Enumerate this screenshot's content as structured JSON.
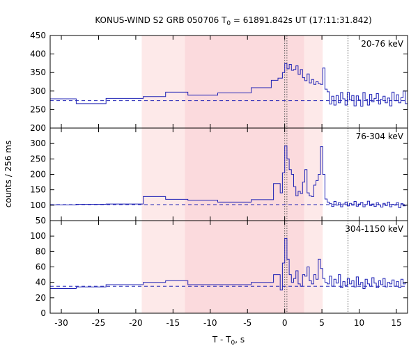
{
  "chart_data": {
    "type": "line",
    "title_main": "KONUS-WIND S2 GRB 050706 T",
    "title_sub": "0",
    "title_rest": " = 61891.842s UT (17:11:31.842)",
    "xlabel_main": "T - T",
    "xlabel_sub": "0",
    "xlabel_rest": ", s",
    "ylabel": "counts / 256 ms",
    "xlim": [
      -31.5,
      16.5
    ],
    "xticks": [
      -30,
      -25,
      -20,
      -15,
      -10,
      -5,
      0,
      5,
      10,
      15
    ],
    "shaded_regions": [
      {
        "x0": -19.2,
        "x1": 5.1,
        "color": "#fde9e9"
      },
      {
        "x0": -13.4,
        "x1": 2.6,
        "color": "#fbdadd"
      }
    ],
    "vlines": [
      0.0,
      0.3,
      8.5
    ],
    "line_color": "#1f22b5",
    "panels": [
      {
        "label": "20-76 keV",
        "ylim": [
          200,
          450
        ],
        "yticks": [
          200,
          250,
          300,
          350,
          400,
          450
        ],
        "background": 274,
        "x": [
          -31.5,
          -28.0,
          -24.0,
          -19.0,
          -16.0,
          -13.0,
          -9.0,
          -4.5,
          -1.8,
          -0.9,
          -0.3,
          0.0,
          0.3,
          0.6,
          0.9,
          1.2,
          1.5,
          1.8,
          2.1,
          2.4,
          2.7,
          3.0,
          3.3,
          3.6,
          3.9,
          4.2,
          4.5,
          4.8,
          5.1,
          5.4,
          5.7,
          6.0,
          6.3,
          6.6,
          6.9,
          7.2,
          7.5,
          7.8,
          8.1,
          8.4,
          8.7,
          9.0,
          9.3,
          9.6,
          9.9,
          10.2,
          10.5,
          10.8,
          11.1,
          11.4,
          11.7,
          12.0,
          12.3,
          12.6,
          12.9,
          13.2,
          13.5,
          13.8,
          14.1,
          14.4,
          14.7,
          15.0,
          15.3,
          15.6,
          15.9,
          16.2
        ],
        "y": [
          279,
          266,
          280,
          285,
          297,
          289,
          295,
          309,
          329,
          335,
          350,
          374,
          360,
          372,
          356,
          358,
          368,
          345,
          358,
          336,
          328,
          346,
          322,
          331,
          318,
          325,
          320,
          318,
          362,
          305,
          298,
          265,
          286,
          262,
          288,
          268,
          296,
          279,
          262,
          296,
          276,
          288,
          260,
          287,
          276,
          259,
          296,
          278,
          262,
          291,
          271,
          280,
          293,
          265,
          278,
          286,
          268,
          281,
          260,
          297,
          274,
          290,
          268,
          282,
          300,
          266
        ]
      },
      {
        "label": "76-304 keV",
        "ylim": [
          50,
          350
        ],
        "yticks": [
          50,
          100,
          150,
          200,
          250,
          300
        ],
        "background": 102,
        "x": [
          -31.5,
          -28.0,
          -24.0,
          -19.0,
          -16.0,
          -13.0,
          -9.0,
          -4.5,
          -1.5,
          -0.6,
          -0.3,
          0.0,
          0.3,
          0.6,
          0.9,
          1.2,
          1.5,
          1.8,
          2.1,
          2.4,
          2.7,
          3.0,
          3.3,
          3.6,
          3.9,
          4.2,
          4.5,
          4.8,
          5.1,
          5.4,
          5.7,
          6.0,
          6.3,
          6.6,
          6.9,
          7.2,
          7.5,
          7.8,
          8.1,
          8.4,
          8.7,
          9.0,
          9.3,
          9.6,
          9.9,
          10.2,
          10.5,
          10.8,
          11.1,
          11.4,
          11.7,
          12.0,
          12.3,
          12.6,
          12.9,
          13.2,
          13.5,
          13.8,
          14.1,
          14.4,
          14.7,
          15.0,
          15.3,
          15.6,
          15.9,
          16.2
        ],
        "y": [
          101,
          103,
          104,
          128,
          119,
          116,
          110,
          118,
          170,
          140,
          205,
          292,
          250,
          215,
          200,
          160,
          130,
          145,
          138,
          175,
          215,
          140,
          130,
          128,
          165,
          180,
          200,
          290,
          200,
          120,
          110,
          105,
          96,
          112,
          100,
          108,
          95,
          104,
          110,
          98,
          106,
          100,
          112,
          97,
          104,
          109,
          95,
          102,
          113,
          99,
          104,
          96,
          108,
          101,
          94,
          106,
          99,
          110,
          95,
          103,
          100,
          108,
          92,
          105,
          98,
          100
        ]
      },
      {
        "label": "304-1150 keV",
        "ylim": [
          0,
          120
        ],
        "yticks": [
          0,
          20,
          40,
          60,
          80,
          100
        ],
        "background": 35,
        "x": [
          -31.5,
          -28.0,
          -24.0,
          -19.0,
          -16.0,
          -13.0,
          -9.0,
          -4.5,
          -1.5,
          -0.6,
          -0.3,
          0.0,
          0.3,
          0.6,
          0.9,
          1.2,
          1.5,
          1.8,
          2.1,
          2.4,
          2.7,
          3.0,
          3.3,
          3.6,
          3.9,
          4.2,
          4.5,
          4.8,
          5.1,
          5.4,
          5.7,
          6.0,
          6.3,
          6.6,
          6.9,
          7.2,
          7.5,
          7.8,
          8.1,
          8.4,
          8.7,
          9.0,
          9.3,
          9.6,
          9.9,
          10.2,
          10.5,
          10.8,
          11.1,
          11.4,
          11.7,
          12.0,
          12.3,
          12.6,
          12.9,
          13.2,
          13.5,
          13.8,
          14.1,
          14.4,
          14.7,
          15.0,
          15.3,
          15.6,
          15.9,
          16.2
        ],
        "y": [
          32,
          34,
          37,
          40,
          42,
          37,
          37,
          40,
          50,
          30,
          65,
          97,
          70,
          50,
          40,
          45,
          55,
          38,
          35,
          50,
          48,
          60,
          42,
          38,
          50,
          44,
          70,
          58,
          45,
          40,
          38,
          48,
          35,
          44,
          39,
          50,
          33,
          41,
          36,
          45,
          38,
          42,
          34,
          47,
          37,
          40,
          32,
          44,
          38,
          35,
          46,
          39,
          33,
          42,
          37,
          45,
          34,
          40,
          38,
          43,
          35,
          41,
          33,
          44,
          38,
          40
        ]
      }
    ]
  }
}
